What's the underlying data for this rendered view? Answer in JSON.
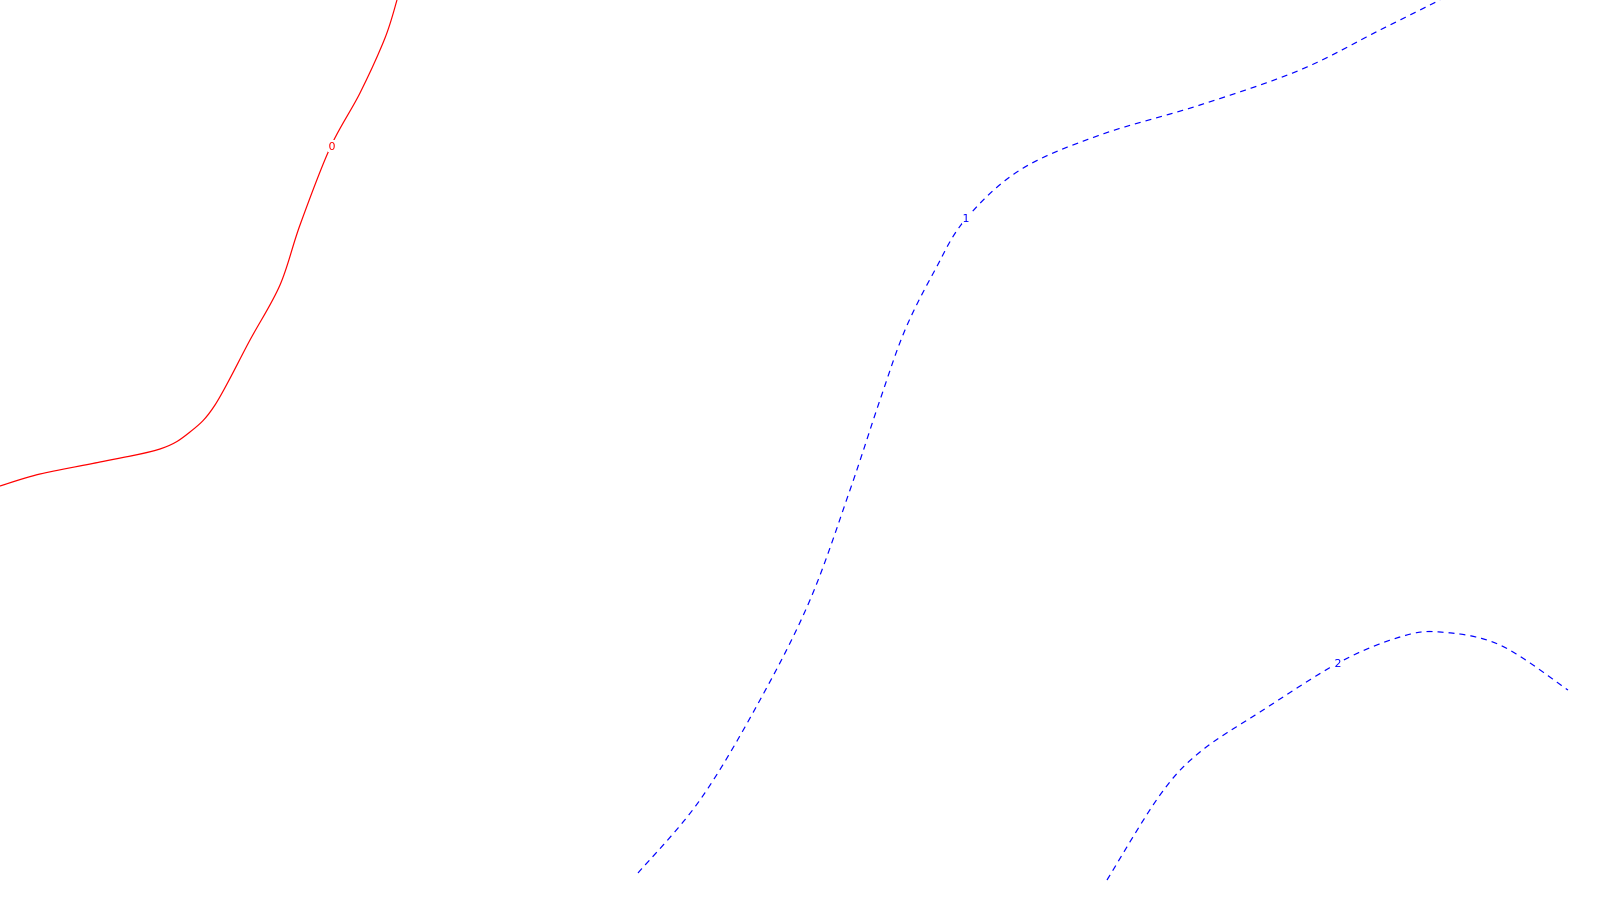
{
  "chart_data": {
    "type": "line",
    "title": "",
    "xlabel": "",
    "ylabel": "",
    "grid": false,
    "legend": "none",
    "series": [
      {
        "label": "0",
        "color": "#ff0000",
        "style": "solid",
        "x": [
          0,
          40,
          100,
          160,
          190,
          215,
          250,
          280,
          300,
          330,
          360,
          385,
          397
        ],
        "y": [
          486,
          474,
          462,
          449,
          432,
          405,
          340,
          285,
          225,
          148,
          93,
          38,
          0
        ]
      },
      {
        "label": "1",
        "color": "#0000ff",
        "style": "dashed",
        "x": [
          638,
          700,
          760,
          810,
          850,
          880,
          905,
          935,
          965,
          1020,
          1100,
          1200,
          1300,
          1380,
          1440
        ],
        "y": [
          873,
          800,
          700,
          600,
          490,
          400,
          330,
          270,
          220,
          170,
          135,
          105,
          70,
          30,
          0
        ]
      },
      {
        "label": "2",
        "color": "#0000ff",
        "style": "dashed",
        "x": [
          1107,
          1160,
          1200,
          1260,
          1340,
          1400,
          1440,
          1500,
          1568
        ],
        "y": [
          880,
          795,
          752,
          712,
          662,
          637,
          632,
          645,
          690
        ]
      }
    ],
    "labels": [
      {
        "text": "0",
        "color": "#ff0000",
        "x": 332,
        "y": 146
      },
      {
        "text": "1",
        "color": "#0000ff",
        "x": 966,
        "y": 218
      },
      {
        "text": "2",
        "color": "#0000ff",
        "x": 1338,
        "y": 663
      }
    ]
  }
}
